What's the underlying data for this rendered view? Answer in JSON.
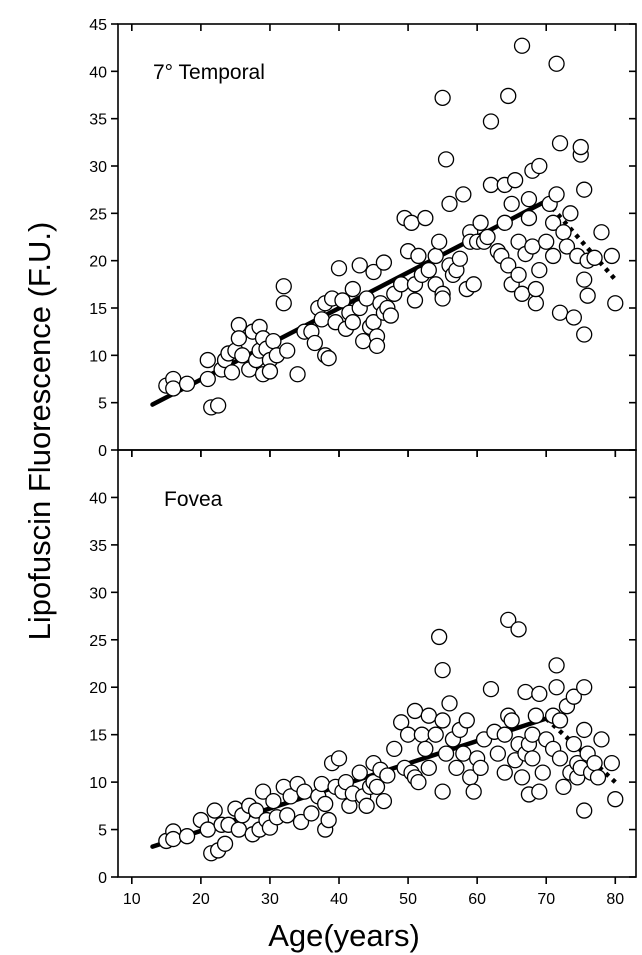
{
  "figure": {
    "xlabel": "Age(years)",
    "ylabel": "Lipofuscin Fluorescence (F.U.)"
  },
  "chart_data": [
    {
      "type": "scatter",
      "title": "7° Temporal",
      "xlabel": "Age(years)",
      "ylabel": "Lipofuscin Fluorescence (F.U.)",
      "xlim": [
        8,
        83
      ],
      "ylim": [
        0,
        45
      ],
      "x_ticks": [
        10,
        20,
        30,
        40,
        50,
        60,
        70,
        80
      ],
      "y_ticks": [
        0,
        5,
        10,
        15,
        20,
        25,
        30,
        35,
        40,
        45
      ],
      "y_tick_labels": [
        "0",
        "5",
        "10",
        "15",
        "20",
        "25",
        "30",
        "35",
        "40",
        "45"
      ],
      "grid": false,
      "points": [
        [
          15,
          6.8
        ],
        [
          16,
          7.5
        ],
        [
          16,
          6.5
        ],
        [
          18,
          7
        ],
        [
          21,
          9.5
        ],
        [
          21,
          7.5
        ],
        [
          21.5,
          4.5
        ],
        [
          22.5,
          4.7
        ],
        [
          23,
          8.5
        ],
        [
          23.5,
          9.5
        ],
        [
          24,
          10.2
        ],
        [
          24.5,
          8.2
        ],
        [
          25,
          10.5
        ],
        [
          25.5,
          13.2
        ],
        [
          25.5,
          11.8
        ],
        [
          26,
          10
        ],
        [
          27,
          8.5
        ],
        [
          27.5,
          12.5
        ],
        [
          28,
          9.5
        ],
        [
          28.5,
          13
        ],
        [
          28.5,
          10.5
        ],
        [
          29,
          11.8
        ],
        [
          29,
          8
        ],
        [
          29.5,
          10.7
        ],
        [
          30,
          9.5
        ],
        [
          30,
          8.3
        ],
        [
          30.5,
          11.5
        ],
        [
          31,
          10
        ],
        [
          32,
          17.3
        ],
        [
          32,
          15.5
        ],
        [
          32.5,
          10.5
        ],
        [
          34,
          8
        ],
        [
          35,
          12.5
        ],
        [
          36,
          12.5
        ],
        [
          36.5,
          11.3
        ],
        [
          37,
          15
        ],
        [
          37.5,
          13.8
        ],
        [
          38,
          15.5
        ],
        [
          38,
          10
        ],
        [
          38.5,
          9.7
        ],
        [
          39,
          16
        ],
        [
          39.5,
          13.5
        ],
        [
          40,
          19.2
        ],
        [
          40.5,
          15.8
        ],
        [
          41,
          12.8
        ],
        [
          41.5,
          14.5
        ],
        [
          42,
          13.5
        ],
        [
          42,
          17
        ],
        [
          43,
          19.5
        ],
        [
          43,
          15
        ],
        [
          43.5,
          11.5
        ],
        [
          44,
          16
        ],
        [
          44.5,
          13
        ],
        [
          45,
          18.8
        ],
        [
          45,
          13.5
        ],
        [
          45.5,
          12
        ],
        [
          45.5,
          11
        ],
        [
          46,
          15.5
        ],
        [
          46.5,
          19.8
        ],
        [
          46.5,
          14.5
        ],
        [
          47,
          15
        ],
        [
          47.5,
          14.2
        ],
        [
          48,
          16.5
        ],
        [
          49,
          17.5
        ],
        [
          49.5,
          24.5
        ],
        [
          50,
          21
        ],
        [
          50.5,
          24
        ],
        [
          51,
          17.5
        ],
        [
          51,
          15.8
        ],
        [
          51.5,
          20.5
        ],
        [
          52,
          18.5
        ],
        [
          52.5,
          24.5
        ],
        [
          53,
          19
        ],
        [
          54,
          20.5
        ],
        [
          54,
          17.5
        ],
        [
          54.5,
          22
        ],
        [
          55,
          16.5
        ],
        [
          55,
          16
        ],
        [
          55,
          37.2
        ],
        [
          55.5,
          30.7
        ],
        [
          56,
          26
        ],
        [
          56,
          19.5
        ],
        [
          56.5,
          18.5
        ],
        [
          57,
          19
        ],
        [
          57.5,
          20.2
        ],
        [
          58,
          27
        ],
        [
          58.5,
          17
        ],
        [
          59,
          23
        ],
        [
          59,
          22
        ],
        [
          59.5,
          17.5
        ],
        [
          60,
          22
        ],
        [
          60.5,
          24
        ],
        [
          61,
          22
        ],
        [
          61.5,
          22.5
        ],
        [
          62,
          28
        ],
        [
          62,
          34.7
        ],
        [
          63,
          21
        ],
        [
          63.5,
          20.5
        ],
        [
          64,
          24
        ],
        [
          64,
          28
        ],
        [
          64.5,
          19.5
        ],
        [
          64.5,
          37.4
        ],
        [
          65,
          26
        ],
        [
          65,
          17.5
        ],
        [
          65.5,
          28.5
        ],
        [
          66,
          22
        ],
        [
          66,
          18.5
        ],
        [
          66.5,
          16.5
        ],
        [
          66.5,
          42.7
        ],
        [
          67,
          20.7
        ],
        [
          67.5,
          26.5
        ],
        [
          67.5,
          24.5
        ],
        [
          68,
          29.5
        ],
        [
          68,
          21.5
        ],
        [
          68.5,
          15.5
        ],
        [
          68.5,
          17
        ],
        [
          69,
          30
        ],
        [
          69,
          19
        ],
        [
          70,
          22
        ],
        [
          70.5,
          26
        ],
        [
          71,
          24
        ],
        [
          71,
          20.5
        ],
        [
          71.5,
          27
        ],
        [
          71.5,
          40.8
        ],
        [
          72,
          32.4
        ],
        [
          72,
          14.5
        ],
        [
          72.5,
          23
        ],
        [
          73,
          21.5
        ],
        [
          73.5,
          25
        ],
        [
          74,
          14
        ],
        [
          74.5,
          20.5
        ],
        [
          75,
          31.2
        ],
        [
          75,
          32
        ],
        [
          75.5,
          27.5
        ],
        [
          75.5,
          18
        ],
        [
          75.5,
          12.2
        ],
        [
          76,
          20
        ],
        [
          76,
          16.3
        ],
        [
          77,
          20.3
        ],
        [
          78,
          23
        ],
        [
          79.5,
          20.5
        ],
        [
          80,
          15.5
        ]
      ],
      "fit_solid": {
        "x": [
          13,
          70
        ],
        "y": [
          4.8,
          26.3
        ]
      },
      "fit_dotted": {
        "x": [
          70,
          80
        ],
        "y": [
          26.3,
          18
        ]
      }
    },
    {
      "type": "scatter",
      "title": "Fovea",
      "xlabel": "Age(years)",
      "ylabel": "Lipofuscin Fluorescence (F.U.)",
      "xlim": [
        8,
        83
      ],
      "ylim": [
        0,
        45
      ],
      "x_ticks": [
        10,
        20,
        30,
        40,
        50,
        60,
        70,
        80
      ],
      "y_ticks": [
        0,
        5,
        10,
        15,
        20,
        25,
        30,
        35,
        40
      ],
      "y_tick_labels": [
        "0",
        "5",
        "10",
        "15",
        "20",
        "25",
        "30",
        "35",
        "40"
      ],
      "grid": false,
      "points": [
        [
          15,
          3.8
        ],
        [
          16,
          4.8
        ],
        [
          16,
          4
        ],
        [
          18,
          4.3
        ],
        [
          20,
          6
        ],
        [
          21,
          5
        ],
        [
          21.5,
          2.5
        ],
        [
          22,
          7
        ],
        [
          22.5,
          2.8
        ],
        [
          23,
          5.5
        ],
        [
          23.5,
          3.5
        ],
        [
          24,
          5.5
        ],
        [
          25,
          7.2
        ],
        [
          25.5,
          5
        ],
        [
          26,
          6.5
        ],
        [
          27,
          7.5
        ],
        [
          27.5,
          4.5
        ],
        [
          28,
          7
        ],
        [
          28.5,
          5
        ],
        [
          29,
          9
        ],
        [
          29.5,
          6
        ],
        [
          30,
          5.2
        ],
        [
          30.5,
          8
        ],
        [
          31,
          6.3
        ],
        [
          32,
          9.5
        ],
        [
          32.5,
          6.5
        ],
        [
          33,
          8.5
        ],
        [
          34,
          9.8
        ],
        [
          34.5,
          5.8
        ],
        [
          35,
          9
        ],
        [
          36,
          6.7
        ],
        [
          37,
          8.5
        ],
        [
          37.5,
          9.8
        ],
        [
          38,
          7.7
        ],
        [
          38,
          5
        ],
        [
          38.5,
          6
        ],
        [
          39,
          12
        ],
        [
          39.5,
          9.5
        ],
        [
          40,
          12.5
        ],
        [
          40.5,
          9
        ],
        [
          41,
          10
        ],
        [
          41.5,
          7.5
        ],
        [
          42,
          8.8
        ],
        [
          43,
          11
        ],
        [
          43.5,
          8.5
        ],
        [
          44,
          7.5
        ],
        [
          44.5,
          9.5
        ],
        [
          45,
          12
        ],
        [
          45,
          10
        ],
        [
          45.5,
          9.5
        ],
        [
          46,
          11.3
        ],
        [
          46.5,
          8
        ],
        [
          47,
          10.7
        ],
        [
          48,
          13.5
        ],
        [
          49,
          16.3
        ],
        [
          49.5,
          11.5
        ],
        [
          50,
          15
        ],
        [
          50.5,
          11
        ],
        [
          51,
          17.5
        ],
        [
          51,
          10.5
        ],
        [
          51.5,
          10
        ],
        [
          52,
          15
        ],
        [
          52.5,
          13.5
        ],
        [
          53,
          17
        ],
        [
          53,
          11.5
        ],
        [
          54,
          15
        ],
        [
          54.5,
          25.3
        ],
        [
          55,
          16.5
        ],
        [
          55,
          21.8
        ],
        [
          55,
          9
        ],
        [
          55.5,
          13
        ],
        [
          56,
          18.3
        ],
        [
          56.5,
          14.5
        ],
        [
          57,
          11.5
        ],
        [
          57.5,
          15.5
        ],
        [
          58,
          13
        ],
        [
          58.5,
          16.5
        ],
        [
          59,
          10.5
        ],
        [
          59.5,
          9
        ],
        [
          60,
          12.5
        ],
        [
          60.5,
          11.5
        ],
        [
          61,
          14.5
        ],
        [
          62,
          19.8
        ],
        [
          62.5,
          15.3
        ],
        [
          63,
          13
        ],
        [
          64,
          15
        ],
        [
          64,
          11
        ],
        [
          64.5,
          17
        ],
        [
          64.5,
          27.1
        ],
        [
          65,
          16.5
        ],
        [
          65.5,
          12.3
        ],
        [
          66,
          14
        ],
        [
          66,
          26.1
        ],
        [
          66.5,
          10.5
        ],
        [
          67,
          19.5
        ],
        [
          67,
          13
        ],
        [
          67.5,
          14
        ],
        [
          67.5,
          8.7
        ],
        [
          68,
          15
        ],
        [
          68,
          12.5
        ],
        [
          68.5,
          17
        ],
        [
          69,
          19.3
        ],
        [
          69,
          9
        ],
        [
          69.5,
          11
        ],
        [
          70,
          14.5
        ],
        [
          71,
          17
        ],
        [
          71,
          13.5
        ],
        [
          71.5,
          20
        ],
        [
          71.5,
          22.3
        ],
        [
          72,
          16.5
        ],
        [
          72,
          12.5
        ],
        [
          72.5,
          9.5
        ],
        [
          73,
          18
        ],
        [
          73.5,
          11
        ],
        [
          74,
          19
        ],
        [
          74,
          14
        ],
        [
          74.5,
          12
        ],
        [
          74.5,
          10.5
        ],
        [
          75,
          11.5
        ],
        [
          75.5,
          20
        ],
        [
          75.5,
          15.5
        ],
        [
          75.5,
          7
        ],
        [
          76,
          13
        ],
        [
          76.5,
          11
        ],
        [
          77,
          12
        ],
        [
          77.5,
          10.5
        ],
        [
          78,
          14.5
        ],
        [
          79.5,
          12
        ],
        [
          80,
          8.2
        ]
      ],
      "fit_solid": {
        "x": [
          13,
          70
        ],
        "y": [
          3.2,
          16.7
        ]
      },
      "fit_dotted": {
        "x": [
          70,
          80
        ],
        "y": [
          16.7,
          10
        ]
      }
    }
  ]
}
